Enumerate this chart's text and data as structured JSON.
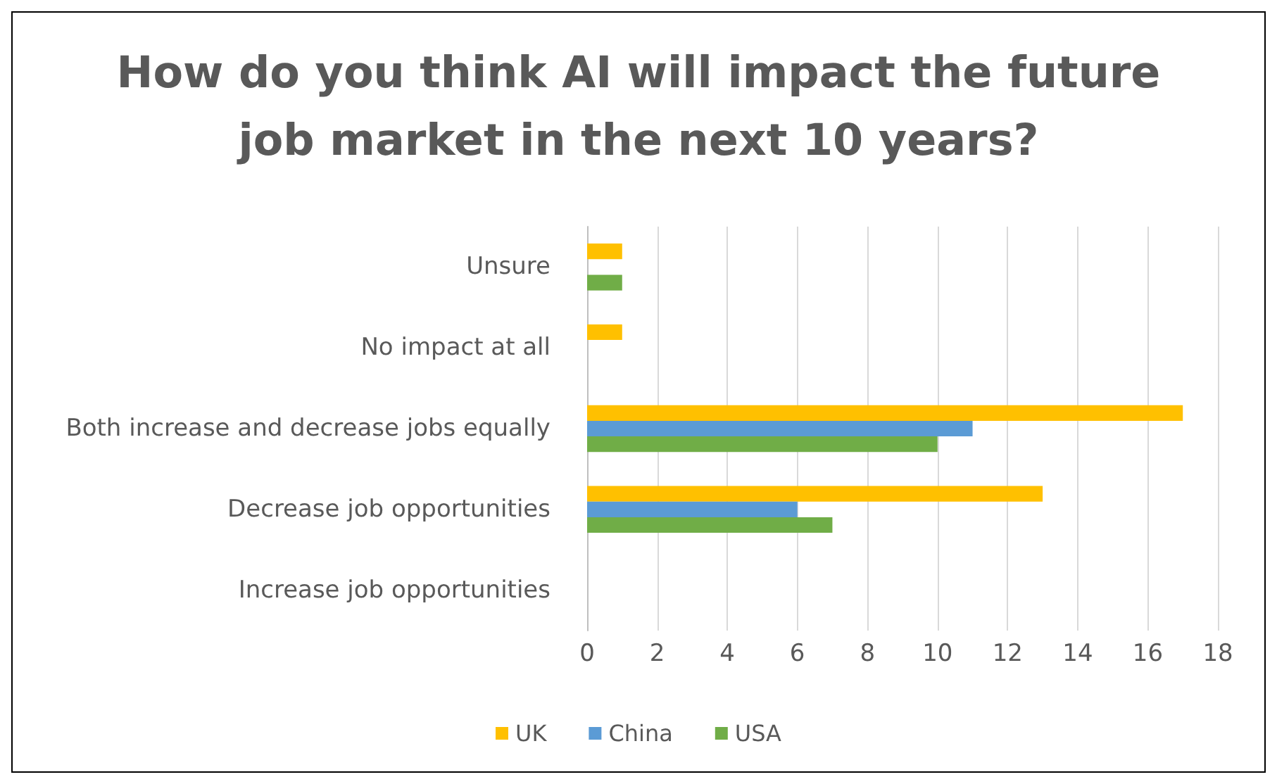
{
  "chart_data": {
    "type": "bar",
    "orientation": "horizontal",
    "title": "How do you think AI will impact the future\njob market in the next 10 years?",
    "categories": [
      "Unsure",
      "No impact at all",
      "Both increase and decrease jobs equally",
      "Decrease job opportunities",
      "Increase job opportunities"
    ],
    "series": [
      {
        "name": "UK",
        "color": "#ffc000",
        "values": [
          1,
          1,
          17,
          13,
          0
        ]
      },
      {
        "name": "China",
        "color": "#5b9bd5",
        "values": [
          0,
          0,
          11,
          6,
          0
        ]
      },
      {
        "name": "USA",
        "color": "#70ad47",
        "values": [
          1,
          0,
          10,
          7,
          0
        ]
      }
    ],
    "xlim": [
      0,
      18
    ],
    "xticks": [
      0,
      2,
      4,
      6,
      8,
      10,
      12,
      14,
      16,
      18
    ],
    "grid": "x",
    "legend": "bottom"
  }
}
